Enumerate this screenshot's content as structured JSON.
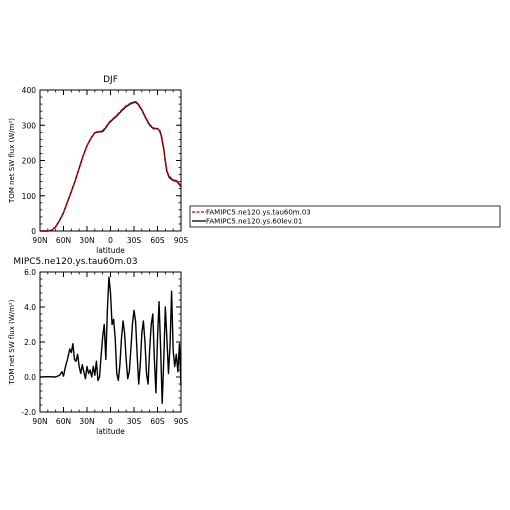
{
  "chart_data": [
    {
      "type": "line",
      "title": "DJF",
      "xlabel": "latitude",
      "ylabel": "TOM net SW flux (W/m²)",
      "x_tick_labels": [
        "90N",
        "60N",
        "30N",
        "0",
        "30S",
        "60S",
        "90S"
      ],
      "x_tick_values": [
        90,
        60,
        30,
        0,
        -30,
        -60,
        -90
      ],
      "xlim": [
        90,
        -90
      ],
      "ylim": [
        0,
        400
      ],
      "y_ticks": [
        0,
        100,
        200,
        300,
        400
      ],
      "y_tick_labels": [
        "0",
        "100",
        "200",
        "300",
        "400"
      ],
      "legend_position": "right",
      "series": [
        {
          "name": "FAMIPC5.ne120.ys.tau60m.03",
          "color": "#cc0000",
          "dash": true,
          "x": [
            90,
            80,
            75,
            70,
            65,
            60,
            55,
            50,
            45,
            40,
            35,
            30,
            25,
            20,
            15,
            10,
            7,
            5,
            2,
            0,
            -3,
            -5,
            -10,
            -15,
            -20,
            -25,
            -30,
            -33,
            -35,
            -40,
            -45,
            -50,
            -55,
            -60,
            -63,
            -65,
            -68,
            -70,
            -72,
            -75,
            -80,
            -85,
            -88,
            -90
          ],
          "y": [
            0,
            0,
            2,
            12,
            30,
            52,
            82,
            112,
            143,
            178,
            213,
            242,
            263,
            280,
            282,
            285,
            292,
            298,
            308,
            312,
            318,
            322,
            333,
            345,
            355,
            362,
            367,
            366,
            362,
            345,
            322,
            302,
            292,
            290,
            285,
            270,
            235,
            200,
            170,
            155,
            145,
            143,
            133,
            128
          ]
        },
        {
          "name": "FAMIPC5.ne120.ys.60lev.01",
          "color": "#000000",
          "dash": false,
          "x": [
            90,
            80,
            75,
            70,
            65,
            60,
            55,
            50,
            45,
            40,
            35,
            30,
            25,
            20,
            15,
            10,
            7,
            5,
            2,
            0,
            -3,
            -5,
            -10,
            -15,
            -20,
            -25,
            -30,
            -33,
            -35,
            -40,
            -45,
            -50,
            -55,
            -60,
            -63,
            -65,
            -68,
            -70,
            -72,
            -75,
            -80,
            -85,
            -88,
            -90
          ],
          "y": [
            0,
            0,
            2,
            12,
            30,
            52,
            82,
            112,
            143,
            178,
            213,
            242,
            263,
            279,
            281,
            282,
            290,
            296,
            306,
            310,
            317,
            320,
            331,
            343,
            353,
            360,
            365,
            364,
            360,
            343,
            320,
            300,
            290,
            291,
            283,
            268,
            232,
            197,
            168,
            152,
            143,
            141,
            131,
            126
          ]
        }
      ]
    },
    {
      "type": "line",
      "title": "MIPC5.ne120.ys.tau60m.03",
      "xlabel": "latitude",
      "ylabel": "TOM net SW flux (W/m²)",
      "x_tick_labels": [
        "90N",
        "60N",
        "30N",
        "0",
        "30S",
        "60S",
        "90S"
      ],
      "x_tick_values": [
        90,
        60,
        30,
        0,
        -30,
        -60,
        -90
      ],
      "xlim": [
        90,
        -90
      ],
      "ylim": [
        -2,
        6
      ],
      "y_ticks": [
        -2,
        0,
        2,
        4,
        6
      ],
      "y_tick_labels": [
        "-2.0",
        "0.0",
        "2.0",
        "4.0",
        "6.0"
      ],
      "series": [
        {
          "name": "",
          "color": "#000000",
          "x": [
            90,
            80,
            70,
            65,
            62,
            60,
            58,
            55,
            52,
            50,
            48,
            46,
            44,
            42,
            40,
            38,
            36,
            34,
            32,
            30,
            28,
            26,
            24,
            22,
            20,
            18,
            16,
            14,
            12,
            10,
            8,
            6,
            4,
            2,
            0,
            -2,
            -4,
            -6,
            -8,
            -10,
            -12,
            -14,
            -16,
            -18,
            -20,
            -22,
            -24,
            -26,
            -28,
            -30,
            -32,
            -34,
            -36,
            -38,
            -40,
            -42,
            -44,
            -46,
            -48,
            -50,
            -52,
            -54,
            -56,
            -58,
            -60,
            -62,
            -64,
            -66,
            -68,
            -70,
            -72,
            -74,
            -76,
            -78,
            -80,
            -82,
            -84,
            -86,
            -88,
            -90
          ],
          "y": [
            0,
            0.02,
            0,
            0.1,
            0.3,
            0.05,
            0.5,
            1.0,
            1.6,
            1.4,
            1.9,
            1.0,
            0.9,
            1.3,
            0.6,
            0.2,
            0.7,
            0.3,
            -0.1,
            0.6,
            0.2,
            0.4,
            0.0,
            0.6,
            0.1,
            0.9,
            -0.2,
            0.0,
            1.2,
            2.3,
            3.0,
            1.0,
            3.8,
            5.7,
            4.8,
            3.0,
            3.3,
            2.2,
            0.2,
            -0.2,
            0.7,
            2.2,
            3.2,
            2.5,
            1.0,
            -0.1,
            0.3,
            1.6,
            3.0,
            3.8,
            3.2,
            1.3,
            -0.4,
            0.7,
            2.5,
            3.2,
            2.0,
            0.2,
            -0.4,
            1.6,
            3.0,
            3.6,
            1.0,
            -0.9,
            2.2,
            4.3,
            1.6,
            -1.5,
            1.0,
            4.0,
            2.2,
            0.2,
            1.8,
            4.9,
            1.5,
            0.6,
            1.3,
            0.3,
            1.9,
            -0.5
          ]
        }
      ]
    }
  ]
}
